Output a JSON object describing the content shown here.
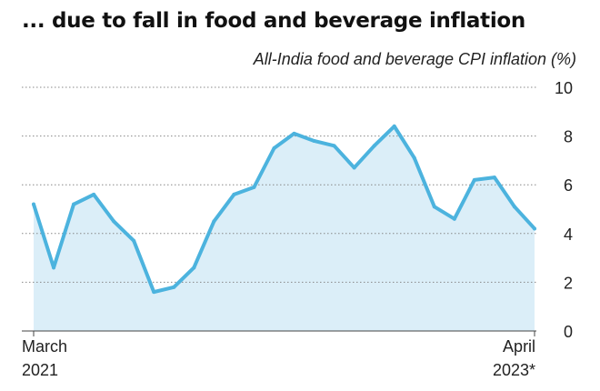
{
  "header": {
    "title": "... due to fall in food and beverage inflation",
    "subtitle": "All-India food and beverage CPI inflation (%)"
  },
  "chart_data": {
    "type": "area",
    "title": "... due to fall in food and beverage inflation",
    "ylabel": "All-India food and beverage CPI inflation (%)",
    "xlabel": "",
    "ylim": [
      0,
      10
    ],
    "yticks": [
      "10",
      "8",
      "6",
      "4",
      "2",
      "0"
    ],
    "x_start_label": [
      "March",
      "2021"
    ],
    "x_end_label": [
      "April",
      "2023*"
    ],
    "x": [
      "Mar 2021",
      "Apr 2021",
      "May 2021",
      "Jun 2021",
      "Jul 2021",
      "Aug 2021",
      "Sep 2021",
      "Oct 2021",
      "Nov 2021",
      "Dec 2021",
      "Jan 2022",
      "Feb 2022",
      "Mar 2022",
      "Apr 2022",
      "May 2022",
      "Jun 2022",
      "Jul 2022",
      "Aug 2022",
      "Sep 2022",
      "Oct 2022",
      "Nov 2022",
      "Dec 2022",
      "Jan 2023",
      "Feb 2023",
      "Mar 2023",
      "Apr 2023*"
    ],
    "values": [
      5.2,
      2.6,
      5.2,
      5.6,
      4.5,
      3.7,
      1.6,
      1.8,
      2.6,
      4.5,
      5.6,
      5.9,
      7.5,
      8.1,
      7.8,
      7.6,
      6.7,
      7.6,
      8.4,
      7.1,
      5.1,
      4.6,
      6.2,
      6.3,
      5.1,
      4.2
    ],
    "grid": true,
    "colors": {
      "line": "#4cb3de",
      "fill": "#dbeef8",
      "grid": "#888888"
    }
  }
}
